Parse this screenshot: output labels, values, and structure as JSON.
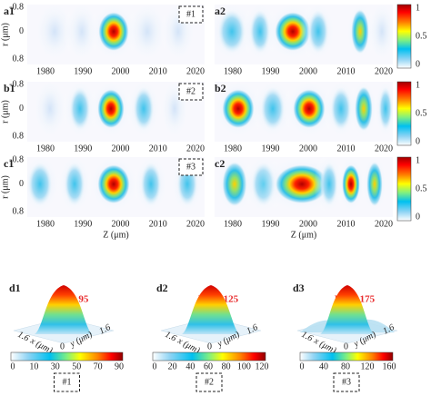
{
  "panels": [
    {
      "label": "a1",
      "box": "#1"
    },
    {
      "label": "a2"
    },
    {
      "label": "b1",
      "box": "#2"
    },
    {
      "label": "b2"
    },
    {
      "label": "c1",
      "box": "#3"
    },
    {
      "label": "c2"
    }
  ],
  "axes": {
    "r_label": "r (μm)",
    "z_label": "Z (μm)",
    "r_ticks": [
      "-0.8",
      "0",
      "0.8"
    ],
    "z_ticks": [
      "1980",
      "1990",
      "2000",
      "2010",
      "2020"
    ]
  },
  "colorbar_ticks": [
    "1",
    "0.5",
    "0"
  ],
  "surfaces": [
    {
      "label": "d1",
      "max": "Max: 95",
      "x_end": "1.6",
      "x_label": "x (μm)",
      "origin": "0",
      "y_label": "y (μm)",
      "y_end": "1.6",
      "colorbar_ticks": [
        "0",
        "10",
        "30",
        "50",
        "70",
        "90"
      ],
      "box": "#1"
    },
    {
      "label": "d2",
      "max": "Max: 125",
      "x_end": "1.6",
      "x_label": "x (μm)",
      "origin": "0",
      "y_label": "y (μm)",
      "y_end": "1.6",
      "colorbar_ticks": [
        "0",
        "20",
        "40",
        "60",
        "80",
        "100",
        "120"
      ],
      "box": "#2"
    },
    {
      "label": "d3",
      "max": "Max: 175",
      "x_end": "1.6",
      "x_label": "x (μm)",
      "origin": "0",
      "y_label": "y (μm)",
      "y_end": "1.6",
      "colorbar_ticks": [
        "0",
        "40",
        "80",
        "120",
        "160"
      ],
      "box": "#3"
    }
  ]
}
